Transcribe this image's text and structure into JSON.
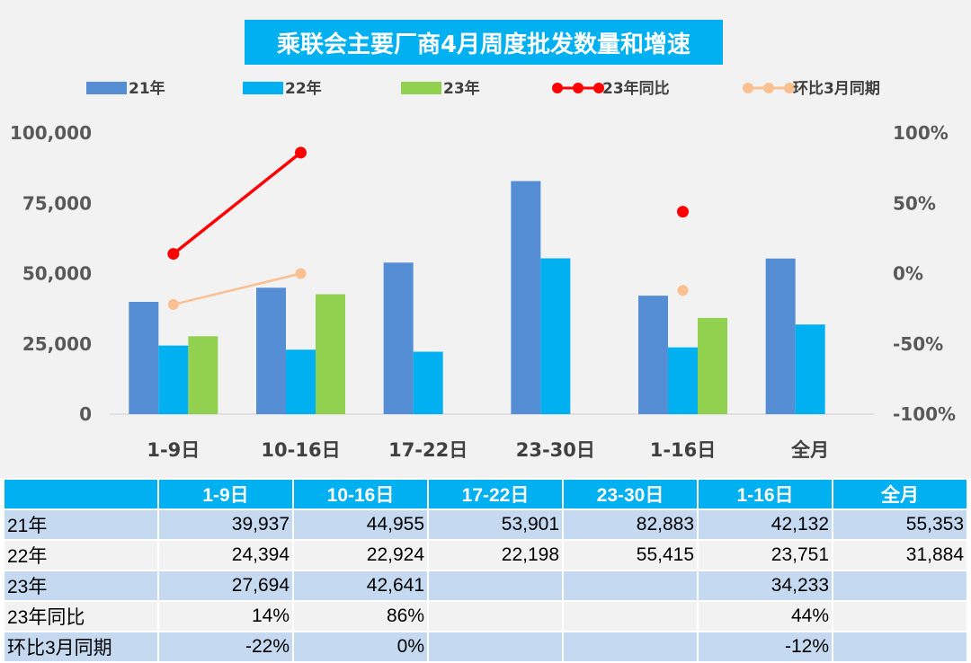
{
  "chart_data": {
    "type": "bar",
    "title": "乘联会主要厂商4月周度批发数量和增速",
    "categories": [
      "1-9日",
      "10-16日",
      "17-22日",
      "23-30日",
      "1-16日",
      "全月"
    ],
    "series": [
      {
        "name": "21年",
        "kind": "bar",
        "axis": "left",
        "color": "#558ed5",
        "values": [
          39937,
          44955,
          53901,
          82883,
          42132,
          55353
        ]
      },
      {
        "name": "22年",
        "kind": "bar",
        "axis": "left",
        "color": "#00b0f0",
        "values": [
          24394,
          22924,
          22198,
          55415,
          23751,
          31884
        ]
      },
      {
        "name": "23年",
        "kind": "bar",
        "axis": "left",
        "color": "#92d050",
        "values": [
          27694,
          42641,
          null,
          null,
          34233,
          null
        ]
      },
      {
        "name": "23年同比",
        "kind": "line",
        "axis": "right",
        "color": "#ff0000",
        "values": [
          14,
          86,
          null,
          null,
          44,
          null
        ]
      },
      {
        "name": "环比3月同期",
        "kind": "line",
        "axis": "right",
        "color": "#fac090",
        "values": [
          -22,
          0,
          null,
          null,
          -12,
          null
        ]
      }
    ],
    "yleft": {
      "lim": [
        0,
        100000
      ],
      "ticks": [
        "0",
        "25,000",
        "50,000",
        "75,000",
        "100,000"
      ]
    },
    "yright": {
      "lim": [
        -100,
        100
      ],
      "ticks": [
        "-100%",
        "-50%",
        "0%",
        "50%",
        "100%"
      ]
    },
    "legend_position": "top",
    "grid": false
  },
  "table": {
    "headers": [
      "",
      "1-9日",
      "10-16日",
      "17-22日",
      "23-30日",
      "1-16日",
      "全月"
    ],
    "rows": [
      {
        "label": "21年",
        "cells": [
          "39,937",
          "44,955",
          "53,901",
          "82,883",
          "42,132",
          "55,353"
        ]
      },
      {
        "label": "22年",
        "cells": [
          "24,394",
          "22,924",
          "22,198",
          "55,415",
          "23,751",
          "31,884"
        ]
      },
      {
        "label": "23年",
        "cells": [
          "27,694",
          "42,641",
          "",
          "",
          "34,233",
          ""
        ]
      },
      {
        "label": "23年同比",
        "cells": [
          "14%",
          "86%",
          "",
          "",
          "44%",
          ""
        ]
      },
      {
        "label": "环比3月同期",
        "cells": [
          "-22%",
          "0%",
          "",
          "",
          "-12%",
          ""
        ]
      }
    ]
  }
}
